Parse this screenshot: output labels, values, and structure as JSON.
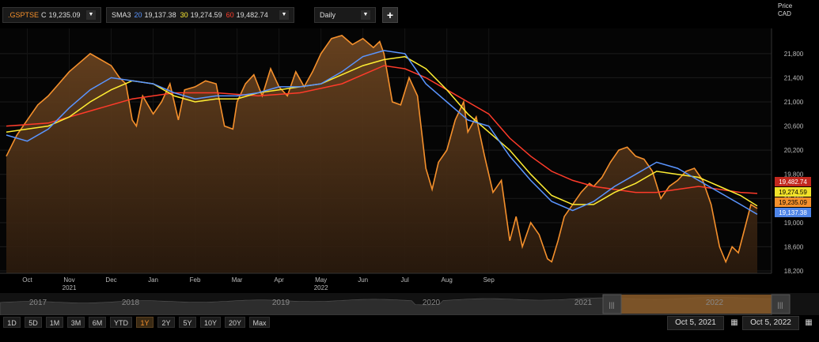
{
  "toolbar": {
    "instrument": ".GSPTSE",
    "close_prefix": "C",
    "close_value": "19,235.09",
    "indicator_name": "SMA3",
    "sma20_period": "20",
    "sma20_value": "19,137.38",
    "sma30_period": "30",
    "sma30_value": "19,274.59",
    "sma60_period": "60",
    "sma60_value": "19,482.74",
    "interval": "Daily",
    "add_label": "+",
    "dropdown_icon": "chevron-down-icon"
  },
  "price_axis": {
    "title": "Price",
    "currency": "CAD"
  },
  "colors": {
    "price": "#f5902c",
    "sma20": "#5a95ff",
    "sma30": "#ffee33",
    "sma60": "#ff3b2a"
  },
  "chart_data": {
    "type": "area",
    "ylim": [
      18200,
      22400
    ],
    "y_ticks": [
      "18,200",
      "18,600",
      "19,000",
      "19,400",
      "19,800",
      "20,200",
      "20,600",
      "21,000",
      "21,400",
      "21,800"
    ],
    "x_ticks": [
      {
        "label": "Oct",
        "year": ""
      },
      {
        "label": "Nov",
        "year": "2021"
      },
      {
        "label": "Dec",
        "year": ""
      },
      {
        "label": "Jan",
        "year": ""
      },
      {
        "label": "Feb",
        "year": ""
      },
      {
        "label": "Mar",
        "year": ""
      },
      {
        "label": "Apr",
        "year": ""
      },
      {
        "label": "May",
        "year": "2022"
      },
      {
        "label": "Jun",
        "year": ""
      },
      {
        "label": "Jul",
        "year": ""
      },
      {
        "label": "Aug",
        "year": ""
      },
      {
        "label": "Sep",
        "year": ""
      }
    ],
    "last_values": [
      {
        "series": "sma60",
        "label": "19,482.74"
      },
      {
        "series": "sma30",
        "label": "19,274.59"
      },
      {
        "series": "close",
        "label": "19,235.09"
      },
      {
        "series": "sma20",
        "label": "19,137.38"
      }
    ],
    "series": [
      {
        "name": ".GSPTSE",
        "key": "close",
        "values": [
          [
            0,
            20100
          ],
          [
            0.25,
            20450
          ],
          [
            0.5,
            20700
          ],
          [
            0.75,
            20950
          ],
          [
            1,
            21100
          ],
          [
            1.25,
            21300
          ],
          [
            1.5,
            21500
          ],
          [
            1.75,
            21650
          ],
          [
            2,
            21800
          ],
          [
            2.25,
            21700
          ],
          [
            2.5,
            21600
          ],
          [
            2.7,
            21400
          ],
          [
            2.85,
            21300
          ],
          [
            3,
            20700
          ],
          [
            3.1,
            20600
          ],
          [
            3.25,
            21100
          ],
          [
            3.5,
            20800
          ],
          [
            3.7,
            21000
          ],
          [
            3.9,
            21300
          ],
          [
            4.1,
            20700
          ],
          [
            4.25,
            21200
          ],
          [
            4.5,
            21250
          ],
          [
            4.75,
            21350
          ],
          [
            5,
            21300
          ],
          [
            5.2,
            20600
          ],
          [
            5.4,
            20550
          ],
          [
            5.5,
            21000
          ],
          [
            5.7,
            21300
          ],
          [
            5.9,
            21450
          ],
          [
            6.1,
            21100
          ],
          [
            6.3,
            21550
          ],
          [
            6.5,
            21250
          ],
          [
            6.7,
            21100
          ],
          [
            6.9,
            21500
          ],
          [
            7.1,
            21250
          ],
          [
            7.3,
            21500
          ],
          [
            7.5,
            21800
          ],
          [
            7.75,
            22050
          ],
          [
            8,
            22100
          ],
          [
            8.25,
            21950
          ],
          [
            8.5,
            22050
          ],
          [
            8.75,
            21900
          ],
          [
            8.9,
            22000
          ],
          [
            9,
            21800
          ],
          [
            9.2,
            21000
          ],
          [
            9.4,
            20950
          ],
          [
            9.6,
            21400
          ],
          [
            9.8,
            21100
          ],
          [
            10,
            19900
          ],
          [
            10.15,
            19550
          ],
          [
            10.3,
            20000
          ],
          [
            10.5,
            20200
          ],
          [
            10.7,
            20700
          ],
          [
            10.9,
            21000
          ],
          [
            11,
            20500
          ],
          [
            11.2,
            20750
          ],
          [
            11.4,
            20100
          ],
          [
            11.6,
            19500
          ],
          [
            11.8,
            19700
          ],
          [
            12,
            18700
          ],
          [
            12.15,
            19100
          ],
          [
            12.3,
            18600
          ],
          [
            12.5,
            19000
          ],
          [
            12.7,
            18800
          ],
          [
            12.9,
            18400
          ],
          [
            13,
            18350
          ],
          [
            13.15,
            18700
          ],
          [
            13.3,
            19100
          ],
          [
            13.5,
            19300
          ],
          [
            13.7,
            19500
          ],
          [
            13.9,
            19650
          ],
          [
            14,
            19600
          ],
          [
            14.2,
            19750
          ],
          [
            14.4,
            20000
          ],
          [
            14.6,
            20200
          ],
          [
            14.8,
            20250
          ],
          [
            15,
            20100
          ],
          [
            15.2,
            20050
          ],
          [
            15.4,
            19850
          ],
          [
            15.6,
            19400
          ],
          [
            15.8,
            19600
          ],
          [
            16,
            19700
          ],
          [
            16.2,
            19850
          ],
          [
            16.4,
            19900
          ],
          [
            16.6,
            19700
          ],
          [
            16.8,
            19300
          ],
          [
            17,
            18600
          ],
          [
            17.15,
            18350
          ],
          [
            17.3,
            18600
          ],
          [
            17.45,
            18500
          ],
          [
            17.6,
            18900
          ],
          [
            17.75,
            19300
          ],
          [
            17.9,
            19235
          ]
        ]
      },
      {
        "name": "20",
        "key": "sma20",
        "values": [
          [
            0,
            20450
          ],
          [
            0.5,
            20350
          ],
          [
            1,
            20550
          ],
          [
            1.5,
            20900
          ],
          [
            2,
            21200
          ],
          [
            2.5,
            21400
          ],
          [
            3,
            21350
          ],
          [
            3.5,
            21300
          ],
          [
            4,
            21150
          ],
          [
            4.5,
            21050
          ],
          [
            5,
            21100
          ],
          [
            5.5,
            21100
          ],
          [
            6,
            21150
          ],
          [
            6.5,
            21250
          ],
          [
            7,
            21250
          ],
          [
            7.5,
            21300
          ],
          [
            8,
            21500
          ],
          [
            8.5,
            21750
          ],
          [
            9,
            21850
          ],
          [
            9.5,
            21800
          ],
          [
            10,
            21300
          ],
          [
            10.5,
            21000
          ],
          [
            11,
            20700
          ],
          [
            11.5,
            20600
          ],
          [
            12,
            20100
          ],
          [
            12.5,
            19700
          ],
          [
            13,
            19350
          ],
          [
            13.5,
            19200
          ],
          [
            14,
            19350
          ],
          [
            14.5,
            19600
          ],
          [
            15,
            19800
          ],
          [
            15.5,
            20000
          ],
          [
            16,
            19900
          ],
          [
            16.5,
            19700
          ],
          [
            17,
            19500
          ],
          [
            17.5,
            19300
          ],
          [
            17.9,
            19137
          ]
        ]
      },
      {
        "name": "30",
        "key": "sma30",
        "values": [
          [
            0,
            20500
          ],
          [
            0.5,
            20550
          ],
          [
            1,
            20600
          ],
          [
            1.5,
            20750
          ],
          [
            2,
            21000
          ],
          [
            2.5,
            21200
          ],
          [
            3,
            21350
          ],
          [
            3.5,
            21300
          ],
          [
            4,
            21100
          ],
          [
            4.5,
            21000
          ],
          [
            5,
            21050
          ],
          [
            5.5,
            21050
          ],
          [
            6,
            21150
          ],
          [
            6.5,
            21200
          ],
          [
            7,
            21250
          ],
          [
            7.5,
            21300
          ],
          [
            8,
            21450
          ],
          [
            8.5,
            21600
          ],
          [
            9,
            21700
          ],
          [
            9.5,
            21750
          ],
          [
            10,
            21550
          ],
          [
            10.5,
            21200
          ],
          [
            11,
            20800
          ],
          [
            11.5,
            20500
          ],
          [
            12,
            20200
          ],
          [
            12.5,
            19800
          ],
          [
            13,
            19450
          ],
          [
            13.5,
            19300
          ],
          [
            14,
            19300
          ],
          [
            14.5,
            19500
          ],
          [
            15,
            19650
          ],
          [
            15.5,
            19850
          ],
          [
            16,
            19800
          ],
          [
            16.5,
            19750
          ],
          [
            17,
            19600
          ],
          [
            17.5,
            19450
          ],
          [
            17.9,
            19275
          ]
        ]
      },
      {
        "name": "60",
        "key": "sma60",
        "values": [
          [
            0,
            20600
          ],
          [
            1,
            20650
          ],
          [
            2,
            20850
          ],
          [
            3,
            21050
          ],
          [
            4,
            21150
          ],
          [
            5,
            21150
          ],
          [
            6,
            21100
          ],
          [
            7,
            21150
          ],
          [
            8,
            21300
          ],
          [
            8.5,
            21450
          ],
          [
            9,
            21600
          ],
          [
            9.5,
            21550
          ],
          [
            10,
            21400
          ],
          [
            10.5,
            21200
          ],
          [
            11,
            21000
          ],
          [
            11.5,
            20800
          ],
          [
            12,
            20400
          ],
          [
            12.5,
            20100
          ],
          [
            13,
            19850
          ],
          [
            13.5,
            19700
          ],
          [
            14,
            19600
          ],
          [
            14.5,
            19550
          ],
          [
            15,
            19500
          ],
          [
            15.5,
            19500
          ],
          [
            16,
            19550
          ],
          [
            16.5,
            19600
          ],
          [
            17,
            19550
          ],
          [
            17.5,
            19500
          ],
          [
            17.9,
            19483
          ]
        ]
      }
    ]
  },
  "navigator": {
    "years": [
      "2017",
      "2018",
      "2019",
      "2020",
      "2021",
      "2022"
    ],
    "left_handle": "|||",
    "right_handle": "|||"
  },
  "ranges": [
    "1D",
    "5D",
    "1M",
    "3M",
    "6M",
    "YTD",
    "1Y",
    "2Y",
    "5Y",
    "10Y",
    "20Y",
    "Max"
  ],
  "active_range": "1Y",
  "date_from": "Oct 5, 2021",
  "date_to": "Oct 5, 2022",
  "calendar_icon": "calendar-icon"
}
